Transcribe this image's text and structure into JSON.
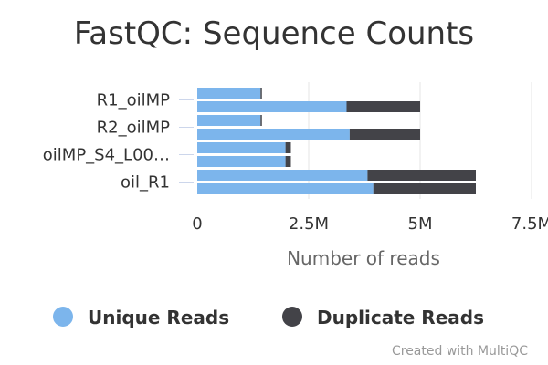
{
  "chart_data": {
    "type": "bar",
    "orientation": "horizontal",
    "stacked": true,
    "title": "FastQC: Sequence Counts",
    "xlabel": "Number of reads",
    "ylabel": "",
    "xlim": [
      0,
      7500000
    ],
    "x_ticks": [
      0,
      2500000,
      5000000,
      7500000
    ],
    "x_tick_labels": [
      "0",
      "2.5M",
      "5M",
      "7.5M"
    ],
    "category_labels": [
      "R1_oilMP",
      "R2_oilMP",
      "oilMP_S4_L00…",
      "oil_R1"
    ],
    "bars": [
      {
        "group": "R1_oilMP",
        "unique": 1420000,
        "duplicate": 30000
      },
      {
        "group": "R1_oilMP",
        "unique": 3350000,
        "duplicate": 1650000
      },
      {
        "group": "R2_oilMP",
        "unique": 1420000,
        "duplicate": 30000
      },
      {
        "group": "R2_oilMP",
        "unique": 3420000,
        "duplicate": 1580000
      },
      {
        "group": "oilMP_S4_L00…",
        "unique": 1980000,
        "duplicate": 120000
      },
      {
        "group": "oilMP_S4_L00…",
        "unique": 1980000,
        "duplicate": 120000
      },
      {
        "group": "oil_R1",
        "unique": 3820000,
        "duplicate": 2430000
      },
      {
        "group": "oil_R1",
        "unique": 3950000,
        "duplicate": 2300000
      }
    ],
    "series": [
      {
        "name": "Unique Reads",
        "key": "unique",
        "color": "#7cb5ec"
      },
      {
        "name": "Duplicate Reads",
        "key": "duplicate",
        "color": "#434348"
      }
    ],
    "grid": true,
    "legend_position": "bottom"
  },
  "credit": "Created with MultiQC"
}
